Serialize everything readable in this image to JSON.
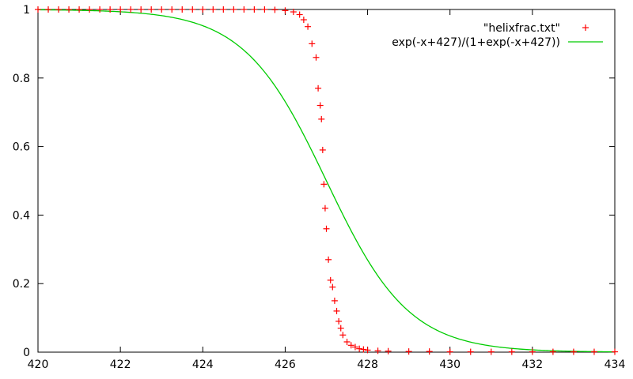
{
  "chart_data": {
    "type": "line",
    "xlim": [
      420,
      434
    ],
    "ylim": [
      0,
      1
    ],
    "x_ticks": [
      420,
      422,
      424,
      426,
      428,
      430,
      432,
      434
    ],
    "y_ticks": [
      0,
      0.2,
      0.4,
      0.6,
      0.8,
      1
    ],
    "x_tick_labels": [
      "420",
      "422",
      "424",
      "426",
      "428",
      "430",
      "432",
      "434"
    ],
    "y_tick_labels": [
      "0",
      "0.2",
      "0.4",
      "0.6",
      "0.8",
      "1"
    ],
    "grid": false,
    "legend_position": "top-right",
    "series": [
      {
        "name": "\"helixfrac.txt\"",
        "style": "points",
        "marker": "plus",
        "color": "#ff0000",
        "x": [
          420.0,
          420.25,
          420.5,
          420.75,
          421.0,
          421.25,
          421.5,
          421.75,
          422.0,
          422.25,
          422.5,
          422.75,
          423.0,
          423.25,
          423.5,
          423.75,
          424.0,
          424.25,
          424.5,
          424.75,
          425.0,
          425.25,
          425.5,
          425.75,
          426.0,
          426.2,
          426.35,
          426.45,
          426.55,
          426.65,
          426.75,
          426.8,
          426.85,
          426.88,
          426.91,
          426.94,
          426.97,
          427.0,
          427.05,
          427.1,
          427.15,
          427.2,
          427.25,
          427.3,
          427.35,
          427.4,
          427.5,
          427.6,
          427.7,
          427.8,
          427.9,
          428.0,
          428.25,
          428.5,
          429.0,
          429.5,
          430.0,
          430.5,
          431.0,
          431.5,
          432.0,
          432.5,
          433.0,
          433.5,
          434.0
        ],
        "y": [
          1,
          1,
          1,
          1,
          1,
          1,
          1,
          1,
          1,
          1,
          1,
          1,
          1,
          1,
          1,
          1,
          1,
          1,
          1,
          1,
          1,
          1,
          1,
          0.999,
          0.997,
          0.993,
          0.985,
          0.97,
          0.95,
          0.9,
          0.86,
          0.77,
          0.72,
          0.68,
          0.59,
          0.49,
          0.42,
          0.36,
          0.27,
          0.21,
          0.19,
          0.15,
          0.12,
          0.09,
          0.07,
          0.05,
          0.03,
          0.02,
          0.015,
          0.01,
          0.008,
          0.006,
          0.004,
          0.003,
          0.002,
          0.002,
          0.001,
          0.001,
          0.001,
          0.001,
          0.001,
          0.001,
          0.001,
          0.001,
          0.001
        ]
      },
      {
        "name": "exp(-x+427)/(1+exp(-x+427))",
        "style": "line",
        "color": "#00cc00",
        "function": "logistic",
        "center": 427
      }
    ]
  }
}
